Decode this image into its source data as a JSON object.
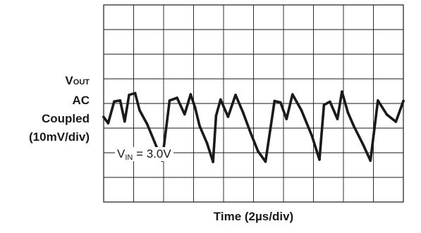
{
  "chart_data": {
    "type": "line",
    "title": "",
    "ylabel": {
      "main": "V",
      "sub": "OUT",
      "line2": "AC",
      "line3": "Coupled",
      "line4": "(10mV/div)"
    },
    "xlabel": "Time (2µs/div)",
    "annotation": {
      "main": "V",
      "sub": "IN",
      "rest": " = 3.0V"
    },
    "grid": true,
    "divisions": {
      "x": 10,
      "y": 8
    },
    "xlim": [
      0,
      20
    ],
    "ylim": [
      -40,
      40
    ],
    "x_unit": "µs",
    "y_unit": "mV",
    "series": [
      {
        "color": "#1a1a1a",
        "x": [
          0.0,
          0.3,
          0.7,
          1.1,
          1.4,
          1.7,
          2.1,
          2.4,
          2.9,
          3.4,
          3.9,
          4.4,
          4.9,
          5.4,
          5.8,
          6.1,
          6.4,
          6.9,
          7.3,
          7.5,
          7.8,
          8.3,
          8.8,
          9.3,
          9.8,
          10.3,
          10.8,
          11.4,
          11.8,
          12.2,
          12.6,
          13.2,
          13.9,
          14.4,
          14.7,
          15.1,
          15.6,
          15.9,
          16.3,
          16.7,
          17.3,
          17.8,
          18.3,
          18.9,
          19.5,
          20.0
        ],
        "y": [
          -5.5,
          -8.0,
          0.8,
          1.2,
          -7.3,
          3.5,
          4.2,
          -2.8,
          -8.3,
          -15.7,
          -23.2,
          1.2,
          2.3,
          -4.4,
          3.7,
          -1.6,
          -9.1,
          -16.1,
          -23.7,
          -5.0,
          1.6,
          -5.4,
          3.5,
          -3.6,
          -11.9,
          -19.4,
          -23.6,
          1.0,
          0.4,
          -6.3,
          3.7,
          -2.8,
          -13.2,
          -22.8,
          -0.6,
          0.7,
          -6.3,
          4.8,
          -3.7,
          -9.3,
          -16.5,
          -23.2,
          1.2,
          -4.5,
          -7.4,
          1.0
        ]
      }
    ]
  }
}
